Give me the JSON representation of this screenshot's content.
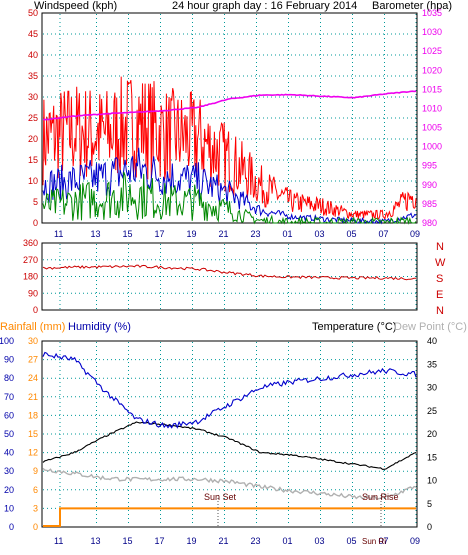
{
  "header": {
    "left_label": "Windspeed (kph)",
    "title": "24 hour graph day : 16 February 2014",
    "right_label": "Barometer (hpa)"
  },
  "colors": {
    "wind_gust": "#ff0000",
    "wind_avg": "#0000cc",
    "wind_min": "#008800",
    "barometer": "#ee00ee",
    "direction": "#cc0000",
    "humidity": "#0000cc",
    "temperature": "#000000",
    "dewpoint": "#b0b0b0",
    "rainfall": "#ff8800",
    "grid": "#009999",
    "left_axis": "#cc0000",
    "right_axis": "#ee00ee",
    "rain_axis": "#0000aa",
    "humidity_axis": "#0000aa",
    "temp_axis": "#000000"
  },
  "x_hours": [
    "11",
    "13",
    "15",
    "17",
    "19",
    "21",
    "23",
    "01",
    "03",
    "05",
    "07",
    "09"
  ],
  "lower_x_hours": [
    "11",
    "13",
    "15",
    "17",
    "19",
    "21",
    "23",
    "01",
    "03",
    "05",
    "07",
    "09"
  ],
  "events": {
    "sunset": "Sun Set",
    "sunrise": "Sun Rise",
    "sunrise_extra": "Sun Ri"
  },
  "direction_labels": [
    "N",
    "W",
    "S",
    "E",
    "N"
  ],
  "lower_header": {
    "rainfall": "Rainfall (mm)",
    "humidity": "Humidity (%)",
    "temperature": "Temperature (°C)",
    "dewpoint": "Dew Point (°C)"
  },
  "chart_data": [
    {
      "type": "line",
      "name": "wind_barometer",
      "title": "24 hour graph day : 16 February 2014",
      "x": [
        "09",
        "11",
        "13",
        "15",
        "17",
        "19",
        "21",
        "23",
        "01",
        "03",
        "05",
        "07",
        "09"
      ],
      "ylabel": "Windspeed (kph)",
      "ylim": [
        0,
        50
      ],
      "yticks": [
        0,
        5,
        10,
        15,
        20,
        25,
        30,
        35,
        40,
        45,
        50
      ],
      "y2label": "Barometer (hpa)",
      "y2lim": [
        980,
        1035
      ],
      "y2ticks": [
        980,
        985,
        990,
        995,
        1000,
        1005,
        1010,
        1015,
        1020,
        1025,
        1030,
        1035
      ],
      "series": [
        {
          "name": "Barometer",
          "axis": "right",
          "values": [
            1007,
            1008,
            1008.6,
            1009,
            1009.5,
            1010.3,
            1012.5,
            1013.5,
            1013.6,
            1013.2,
            1012.8,
            1013.8,
            1014.6
          ]
        },
        {
          "axis": "left",
          "values": [
            20,
            22,
            21,
            24,
            21,
            20,
            15,
            9,
            5,
            4,
            2,
            2,
            7
          ]
        },
        {
          "axis": "left",
          "values": [
            9,
            10,
            11,
            13,
            11,
            10,
            7,
            3,
            1.5,
            1,
            0.5,
            0.3,
            2
          ]
        },
        {
          "axis": "left",
          "values": [
            4,
            5,
            6,
            7,
            5,
            5,
            3,
            0.5,
            0,
            0,
            0,
            0,
            0.5
          ]
        }
      ]
    },
    {
      "type": "line",
      "name": "wind_direction",
      "x": [
        "09",
        "11",
        "13",
        "15",
        "17",
        "19",
        "21",
        "23",
        "01",
        "03",
        "05",
        "07",
        "09"
      ],
      "ylim": [
        0,
        360
      ],
      "yticks": [
        0,
        90,
        180,
        270,
        360
      ],
      "series": [
        {
          "name": "Direction",
          "values": [
            225,
            230,
            232,
            235,
            228,
            220,
            200,
            183,
            177,
            174,
            172,
            172,
            168
          ]
        }
      ]
    },
    {
      "type": "line",
      "name": "temperature_humidity_rain",
      "x": [
        "09",
        "11",
        "13",
        "15",
        "17",
        "19",
        "21",
        "23",
        "01",
        "03",
        "05",
        "07",
        "09"
      ],
      "rain_ylim": [
        0,
        30
      ],
      "rain_yticks": [
        0,
        3,
        6,
        9,
        12,
        15,
        18,
        21,
        24,
        27,
        30
      ],
      "humidity_ylim": [
        0,
        100
      ],
      "humidity_yticks": [
        0,
        10,
        20,
        30,
        40,
        50,
        60,
        70,
        80,
        90,
        100
      ],
      "temp_ylim": [
        0,
        40
      ],
      "temp_yticks": [
        0,
        5,
        10,
        15,
        20,
        25,
        30,
        35,
        40
      ],
      "series": [
        {
          "name": "Humidity",
          "axis": "humidity",
          "values": [
            93,
            90,
            73,
            58,
            54,
            57,
            66,
            75,
            78,
            80,
            82,
            84,
            82
          ]
        },
        {
          "name": "Temperature",
          "axis": "temp",
          "values": [
            14,
            16,
            19.5,
            22.5,
            22,
            21,
            19,
            16,
            15.5,
            14.5,
            13.5,
            12.5,
            16
          ]
        },
        {
          "name": "Dew Point",
          "axis": "temp",
          "values": [
            12.5,
            11.5,
            10.5,
            10.2,
            10.3,
            10.3,
            9.8,
            8.6,
            7.8,
            7.2,
            6.4,
            6.2,
            8.8
          ]
        },
        {
          "name": "Rainfall",
          "axis": "rain",
          "values": [
            0,
            3,
            3,
            3,
            3,
            3,
            3,
            3,
            3,
            3,
            3,
            3,
            3
          ]
        }
      ]
    }
  ]
}
